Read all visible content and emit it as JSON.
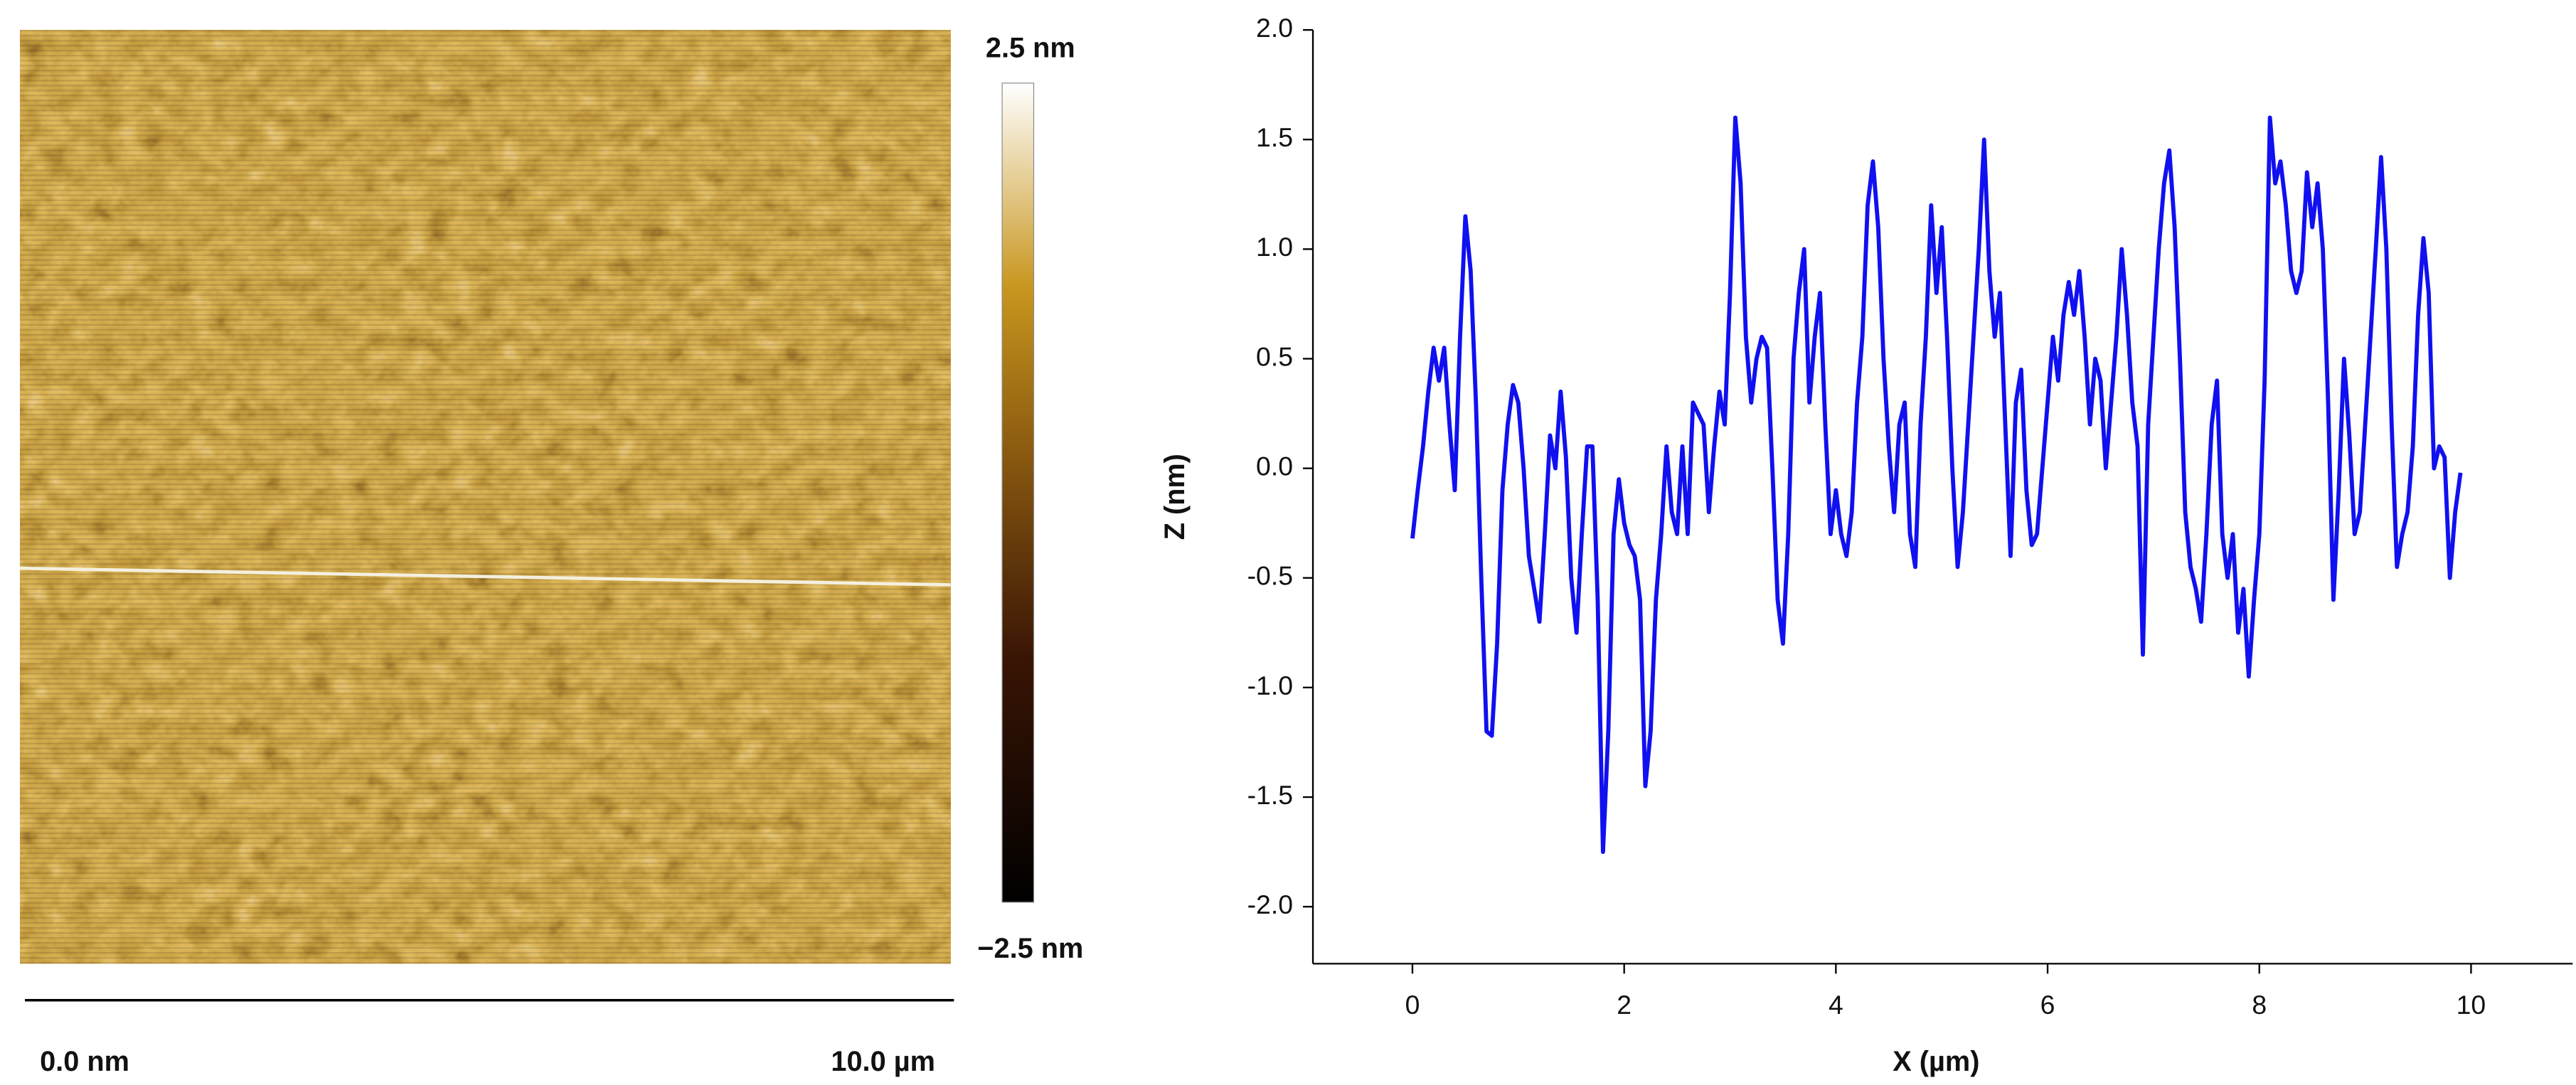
{
  "afm_image": {
    "colorbar_max": "2.5 nm",
    "colorbar_min": "−2.5 nm",
    "scale_start": "0.0 nm",
    "scale_end": "10.0 µm"
  },
  "chart_data": {
    "type": "line",
    "x_label": "X (µm)",
    "y_label": "Z (nm)",
    "color": "#1010f0",
    "xlim": [
      -0.94,
      10.96
    ],
    "xticks": [
      0,
      2,
      4,
      6,
      8,
      10
    ],
    "ylim": [
      -2.26,
      2.0
    ],
    "yticks": [
      {
        "value": -2.0,
        "label": "-2.0"
      },
      {
        "value": -1.5,
        "label": "-1.5"
      },
      {
        "value": -1.0,
        "label": "-1.0"
      },
      {
        "value": -0.5,
        "label": "-0.5"
      },
      {
        "value": 0.0,
        "label": "0.0"
      },
      {
        "value": 0.5,
        "label": "0.5"
      },
      {
        "value": 1.0,
        "label": "1.0"
      },
      {
        "value": 1.5,
        "label": "1.5"
      },
      {
        "value": 2.0,
        "label": "2.0"
      }
    ],
    "x": [
      0,
      0.05,
      0.1,
      0.15,
      0.2,
      0.25,
      0.3,
      0.35,
      0.4,
      0.45,
      0.5,
      0.55,
      0.6,
      0.65,
      0.7,
      0.75,
      0.8,
      0.85,
      0.9,
      0.95,
      1.0,
      1.05,
      1.1,
      1.15,
      1.2,
      1.25,
      1.3,
      1.35,
      1.4,
      1.45,
      1.5,
      1.55,
      1.6,
      1.65,
      1.7,
      1.75,
      1.8,
      1.85,
      1.9,
      1.95,
      2.0,
      2.05,
      2.1,
      2.15,
      2.2,
      2.25,
      2.3,
      2.35,
      2.4,
      2.45,
      2.5,
      2.55,
      2.6,
      2.65,
      2.7,
      2.75,
      2.8,
      2.85,
      2.9,
      2.95,
      3.0,
      3.05,
      3.1,
      3.15,
      3.2,
      3.25,
      3.3,
      3.35,
      3.4,
      3.45,
      3.5,
      3.55,
      3.6,
      3.65,
      3.7,
      3.75,
      3.8,
      3.85,
      3.9,
      3.95,
      4.0,
      4.05,
      4.1,
      4.15,
      4.2,
      4.25,
      4.3,
      4.35,
      4.4,
      4.45,
      4.5,
      4.55,
      4.6,
      4.65,
      4.7,
      4.75,
      4.8,
      4.85,
      4.9,
      4.95,
      5.0,
      5.05,
      5.1,
      5.15,
      5.2,
      5.25,
      5.3,
      5.35,
      5.4,
      5.45,
      5.5,
      5.55,
      5.6,
      5.65,
      5.7,
      5.75,
      5.8,
      5.85,
      5.9,
      5.95,
      6.0,
      6.05,
      6.1,
      6.15,
      6.2,
      6.25,
      6.3,
      6.35,
      6.4,
      6.45,
      6.5,
      6.55,
      6.6,
      6.65,
      6.7,
      6.75,
      6.8,
      6.85,
      6.9,
      6.95,
      7.0,
      7.05,
      7.1,
      7.15,
      7.2,
      7.25,
      7.3,
      7.35,
      7.4,
      7.45,
      7.5,
      7.55,
      7.6,
      7.65,
      7.7,
      7.75,
      7.8,
      7.85,
      7.9,
      7.95,
      8.0,
      8.05,
      8.1,
      8.15,
      8.2,
      8.25,
      8.3,
      8.35,
      8.4,
      8.45,
      8.5,
      8.55,
      8.6,
      8.65,
      8.7,
      8.75,
      8.8,
      8.85,
      8.9,
      8.95,
      9.0,
      9.05,
      9.1,
      9.15,
      9.2,
      9.25,
      9.3,
      9.35,
      9.4,
      9.45,
      9.5,
      9.55,
      9.6,
      9.65,
      9.7,
      9.75,
      9.8,
      9.85,
      9.9
    ],
    "values": [
      -0.32,
      -0.1,
      0.1,
      0.35,
      0.55,
      0.4,
      0.55,
      0.2,
      -0.1,
      0.6,
      1.15,
      0.9,
      0.3,
      -0.5,
      -1.2,
      -1.22,
      -0.8,
      -0.1,
      0.2,
      0.38,
      0.3,
      0.0,
      -0.4,
      -0.55,
      -0.7,
      -0.3,
      0.15,
      0.0,
      0.35,
      0.05,
      -0.5,
      -0.75,
      -0.3,
      0.1,
      0.1,
      -0.6,
      -1.75,
      -1.2,
      -0.3,
      -0.05,
      -0.25,
      -0.35,
      -0.4,
      -0.6,
      -1.45,
      -1.2,
      -0.6,
      -0.3,
      0.1,
      -0.2,
      -0.3,
      0.1,
      -0.3,
      0.3,
      0.25,
      0.2,
      -0.2,
      0.1,
      0.35,
      0.2,
      0.8,
      1.6,
      1.3,
      0.6,
      0.3,
      0.5,
      0.6,
      0.55,
      0.0,
      -0.6,
      -0.8,
      -0.3,
      0.5,
      0.8,
      1.0,
      0.3,
      0.6,
      0.8,
      0.2,
      -0.3,
      -0.1,
      -0.3,
      -0.4,
      -0.2,
      0.3,
      0.6,
      1.2,
      1.4,
      1.1,
      0.5,
      0.1,
      -0.2,
      0.2,
      0.3,
      -0.3,
      -0.45,
      0.2,
      0.6,
      1.2,
      0.8,
      1.1,
      0.6,
      0.0,
      -0.45,
      -0.2,
      0.2,
      0.6,
      1.0,
      1.5,
      0.9,
      0.6,
      0.8,
      0.2,
      -0.4,
      0.3,
      0.45,
      -0.1,
      -0.35,
      -0.3,
      0.0,
      0.3,
      0.6,
      0.4,
      0.7,
      0.85,
      0.7,
      0.9,
      0.6,
      0.2,
      0.5,
      0.4,
      0.0,
      0.3,
      0.6,
      1.0,
      0.7,
      0.3,
      0.1,
      -0.85,
      0.2,
      0.6,
      1.0,
      1.3,
      1.45,
      1.1,
      0.5,
      -0.2,
      -0.45,
      -0.55,
      -0.7,
      -0.3,
      0.2,
      0.4,
      -0.3,
      -0.5,
      -0.3,
      -0.75,
      -0.55,
      -0.95,
      -0.6,
      -0.3,
      0.4,
      1.6,
      1.3,
      1.4,
      1.2,
      0.9,
      0.8,
      0.9,
      1.35,
      1.1,
      1.3,
      1.0,
      0.3,
      -0.6,
      -0.1,
      0.5,
      0.15,
      -0.3,
      -0.2,
      0.2,
      0.6,
      1.0,
      1.42,
      1.0,
      0.2,
      -0.45,
      -0.3,
      -0.2,
      0.1,
      0.7,
      1.05,
      0.8,
      0.0,
      0.1,
      0.05,
      -0.5,
      -0.2,
      -0.02
    ]
  }
}
